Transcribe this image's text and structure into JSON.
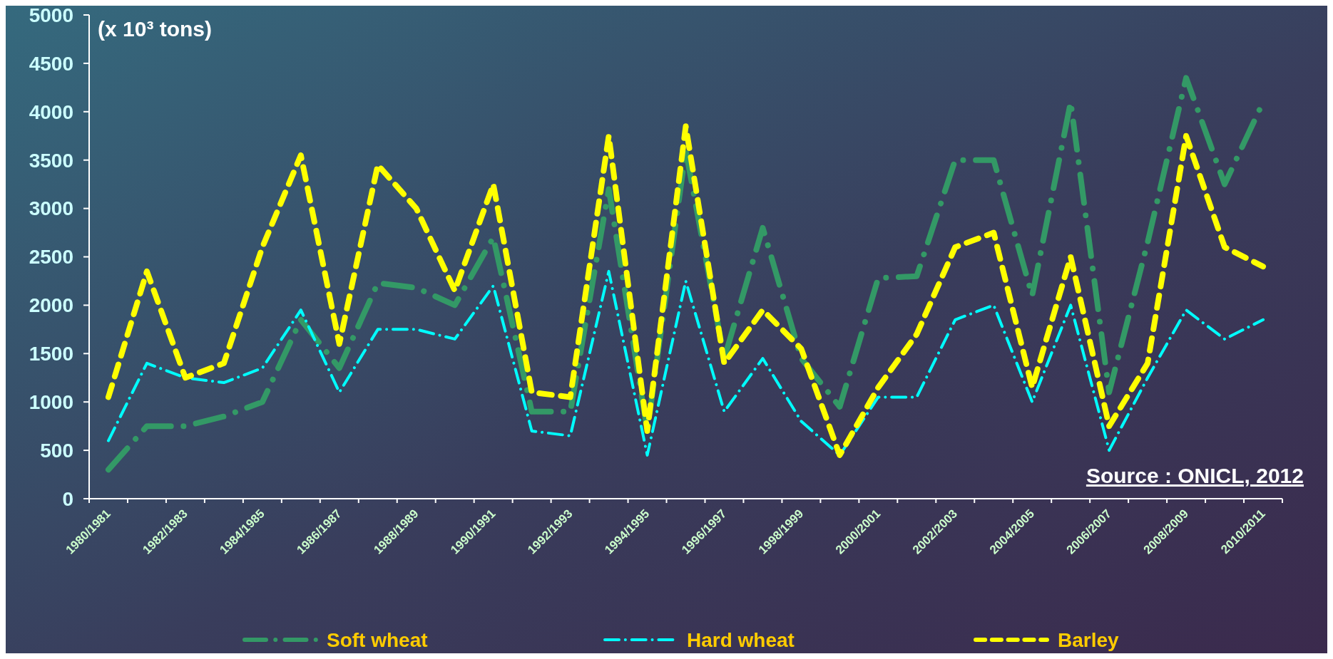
{
  "chart_data": {
    "type": "line",
    "ylabel": "(x 10³ tons)",
    "categories": [
      "1980/1981",
      null,
      "1982/1983",
      null,
      "1984/1985",
      null,
      "1986/1987",
      null,
      "1988/1989",
      null,
      "1990/1991",
      null,
      "1992/1993",
      null,
      "1994/1995",
      null,
      "1996/1997",
      null,
      "1998/1999",
      null,
      "2000/2001",
      null,
      "2002/2003",
      null,
      "2004/2005",
      null,
      "2006/2007",
      null,
      "2008/2009",
      null,
      "2010/2011"
    ],
    "series": [
      {
        "name": "Soft wheat",
        "color": "#339966",
        "line_style": "dashdot",
        "values": [
          300,
          750,
          750,
          850,
          1000,
          1850,
          1350,
          2230,
          2180,
          2000,
          2700,
          900,
          900,
          3200,
          700,
          3600,
          1450,
          2800,
          1450,
          950,
          2280,
          2300,
          3500,
          3500,
          2100,
          4100,
          1100,
          2650,
          4350,
          3250,
          4100
        ]
      },
      {
        "name": "Hard wheat",
        "color": "#00ffff",
        "line_style": "dashdot",
        "values": [
          600,
          1400,
          1250,
          1200,
          1350,
          1950,
          1100,
          1750,
          1750,
          1650,
          2200,
          700,
          650,
          2350,
          450,
          2250,
          900,
          1450,
          800,
          450,
          1050,
          1050,
          1850,
          2000,
          1000,
          2000,
          500,
          1250,
          1950,
          1650,
          1850
        ]
      },
      {
        "name": "Barley",
        "color": "#ffff00",
        "line_style": "dashed",
        "values": [
          1050,
          2350,
          1250,
          1400,
          2600,
          3550,
          1600,
          3450,
          3000,
          2150,
          3250,
          1100,
          1050,
          3750,
          700,
          3850,
          1400,
          1950,
          1550,
          450,
          1150,
          1700,
          2600,
          2750,
          1150,
          2500,
          750,
          1400,
          3750,
          2600,
          2400
        ]
      }
    ],
    "ylim": [
      0,
      5000
    ],
    "yticks": [
      0,
      500,
      1000,
      1500,
      2000,
      2500,
      3000,
      3500,
      4000,
      4500,
      5000
    ],
    "grid": false,
    "legend": "bottom",
    "marker": "none",
    "annotations": [
      "Source : ONICL, 2012"
    ]
  }
}
